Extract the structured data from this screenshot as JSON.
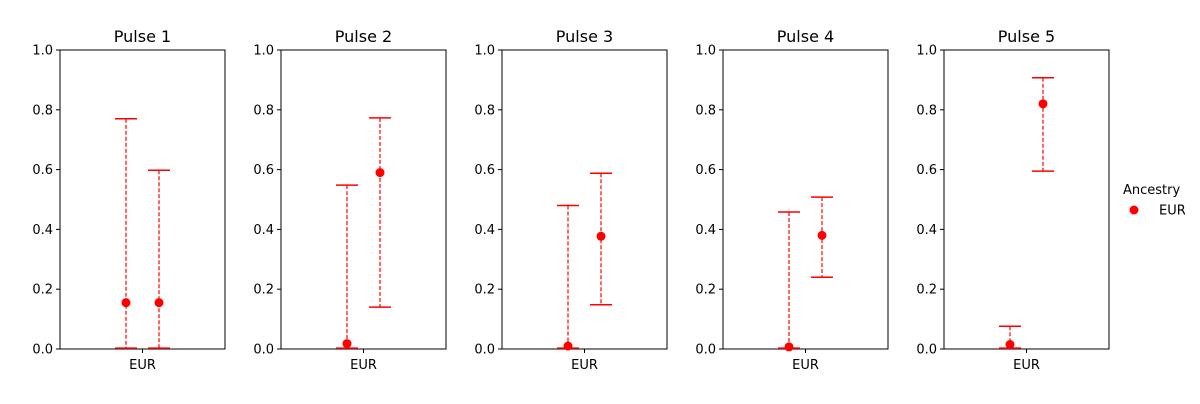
{
  "chart_data": {
    "type": "errorbar",
    "style": {
      "series_color": "#ff0000",
      "errorbar_linestyle": "dashed"
    },
    "legend": {
      "title": "Ancestry",
      "placement": "right",
      "entries": [
        "EUR"
      ]
    },
    "panels": [
      {
        "title": "Pulse 1",
        "category": "EUR",
        "ylim": [
          0,
          1
        ],
        "yticks": [
          "0.0",
          "0.2",
          "0.4",
          "0.6",
          "0.8",
          "1.0"
        ],
        "points": [
          {
            "estimate": 0.155,
            "lower": 0.003,
            "upper": 0.77
          },
          {
            "estimate": 0.155,
            "lower": 0.003,
            "upper": 0.598
          }
        ]
      },
      {
        "title": "Pulse 2",
        "category": "EUR",
        "ylim": [
          0,
          1
        ],
        "yticks": [
          "0.0",
          "0.2",
          "0.4",
          "0.6",
          "0.8",
          "1.0"
        ],
        "points": [
          {
            "estimate": 0.018,
            "lower": 0.003,
            "upper": 0.548
          },
          {
            "estimate": 0.59,
            "lower": 0.14,
            "upper": 0.773
          }
        ]
      },
      {
        "title": "Pulse 3",
        "category": "EUR",
        "ylim": [
          0,
          1
        ],
        "yticks": [
          "0.0",
          "0.2",
          "0.4",
          "0.6",
          "0.8",
          "1.0"
        ],
        "points": [
          {
            "estimate": 0.01,
            "lower": 0.003,
            "upper": 0.48
          },
          {
            "estimate": 0.377,
            "lower": 0.148,
            "upper": 0.588
          }
        ]
      },
      {
        "title": "Pulse 4",
        "category": "EUR",
        "ylim": [
          0,
          1
        ],
        "yticks": [
          "0.0",
          "0.2",
          "0.4",
          "0.6",
          "0.8",
          "1.0"
        ],
        "points": [
          {
            "estimate": 0.007,
            "lower": 0.003,
            "upper": 0.458
          },
          {
            "estimate": 0.38,
            "lower": 0.24,
            "upper": 0.508
          }
        ]
      },
      {
        "title": "Pulse 5",
        "category": "EUR",
        "ylim": [
          0,
          1
        ],
        "yticks": [
          "0.0",
          "0.2",
          "0.4",
          "0.6",
          "0.8",
          "1.0"
        ],
        "points": [
          {
            "estimate": 0.015,
            "lower": 0.003,
            "upper": 0.076
          },
          {
            "estimate": 0.82,
            "lower": 0.595,
            "upper": 0.907
          }
        ]
      }
    ]
  }
}
